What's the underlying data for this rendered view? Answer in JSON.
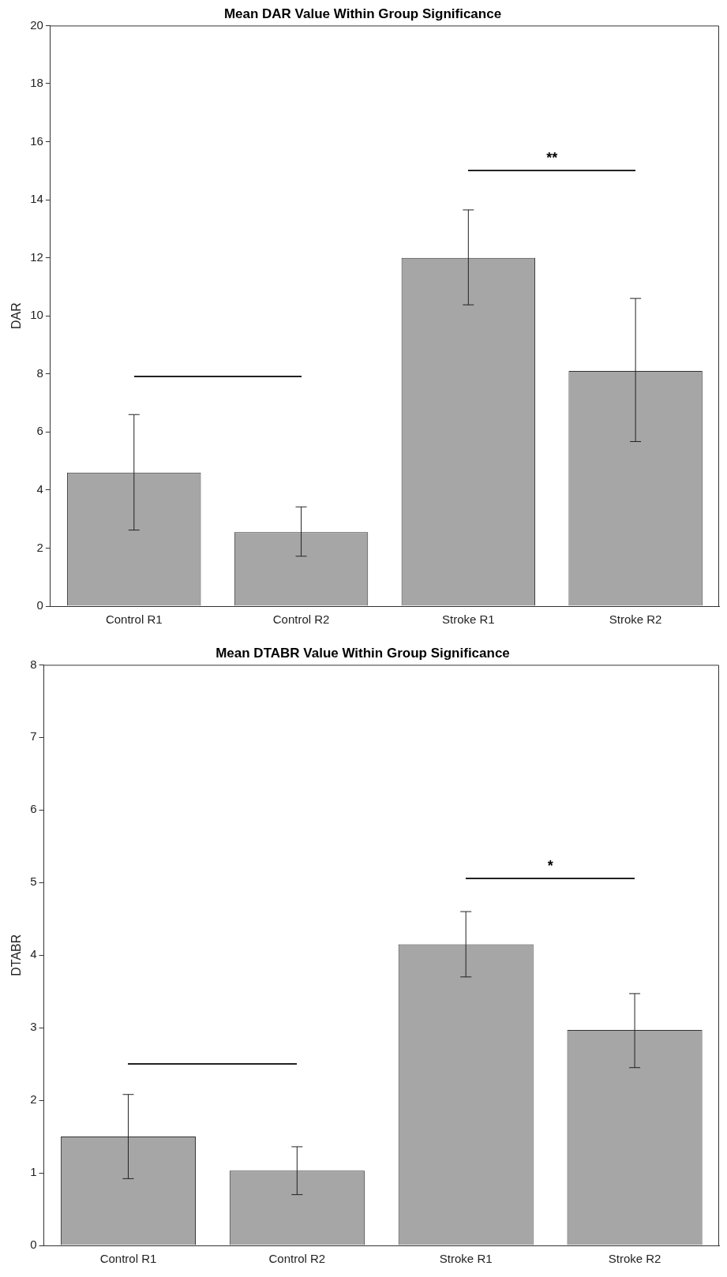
{
  "chart_data": [
    {
      "type": "bar",
      "title": "Mean DAR Value Within Group Significance",
      "ylabel": "DAR",
      "categories": [
        "Control R1",
        "Control R2",
        "Stroke R1",
        "Stroke R2"
      ],
      "values": [
        4.6,
        2.55,
        12.0,
        8.1
      ],
      "errors": [
        [
          2.62,
          6.6
        ],
        [
          1.72,
          3.42
        ],
        [
          10.38,
          13.65
        ],
        [
          5.67,
          10.6
        ]
      ],
      "color": "#a6a6a6",
      "ylim": [
        0,
        20
      ],
      "yticks": [
        0,
        2,
        4,
        6,
        8,
        10,
        12,
        14,
        16,
        18,
        20
      ],
      "grid": false,
      "legend": false,
      "annotations": [
        "**"
      ]
    },
    {
      "type": "bar",
      "title": "Mean DTABR Value Within Group Significance",
      "ylabel": "DTABR",
      "categories": [
        "Control R1",
        "Control R2",
        "Stroke R1",
        "Stroke R2"
      ],
      "values": [
        1.5,
        1.03,
        4.15,
        2.97
      ],
      "errors": [
        [
          0.92,
          2.08
        ],
        [
          0.7,
          1.36
        ],
        [
          3.7,
          4.6
        ],
        [
          2.45,
          3.47
        ]
      ],
      "color": "#a6a6a6",
      "ylim": [
        0,
        8
      ],
      "yticks": [
        0,
        1,
        2,
        3,
        4,
        5,
        6,
        7,
        8
      ],
      "grid": false,
      "legend": false,
      "annotations": [
        "*"
      ]
    }
  ]
}
